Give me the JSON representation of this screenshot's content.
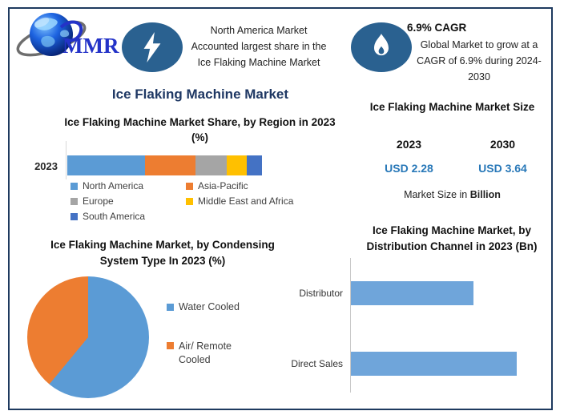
{
  "logo": {
    "text": "MMR"
  },
  "highlights": {
    "region": {
      "icon": "lightning-icon",
      "lines": [
        "North America Market",
        "Accounted largest share in the",
        "Ice Flaking Machine Market"
      ]
    },
    "cagr": {
      "icon": "flame-icon",
      "heading": "6.9% CAGR",
      "body_lines": [
        "Global Market to grow at a",
        "CAGR of 6.9% during 2024-",
        "2030"
      ]
    }
  },
  "main_title": "Ice Flaking Machine Market",
  "market_size": {
    "title": "Ice Flaking Machine Market Size",
    "columns": [
      {
        "year": "2023",
        "value": "USD 2.28"
      },
      {
        "year": "2030",
        "value": "USD 3.64"
      }
    ],
    "note_prefix": "Market Size in ",
    "note_bold": "Billion"
  },
  "colors": {
    "frame_border": "#1e3a5f",
    "title_navy": "#1f3864",
    "icon_circle": "#2a6190",
    "usd_blue": "#2878b8",
    "dist_bar": "#6fa5da",
    "axis_gray": "#d9d9d9"
  },
  "chart_data": [
    {
      "type": "bar",
      "variant": "stacked-horizontal",
      "title": "Ice Flaking Machine Market Share, by Region in 2023 (%)",
      "categories": [
        "2023"
      ],
      "series": [
        {
          "name": "North America",
          "values": [
            40
          ],
          "color": "#5b9bd5"
        },
        {
          "name": "Asia-Pacific",
          "values": [
            26
          ],
          "color": "#ed7d31"
        },
        {
          "name": "Europe",
          "values": [
            16
          ],
          "color": "#a5a5a5"
        },
        {
          "name": "Middle East and Africa",
          "values": [
            10
          ],
          "color": "#ffc000"
        },
        {
          "name": "South America",
          "values": [
            8
          ],
          "color": "#4472c4"
        }
      ],
      "xlim": [
        0,
        100
      ],
      "unit": "%",
      "grid": false,
      "legend_position": "bottom"
    },
    {
      "type": "pie",
      "title": "Ice Flaking Machine Market, by Condensing System Type In 2023 (%)",
      "labels": [
        "Water Cooled",
        "Air/ Remote Cooled"
      ],
      "values": [
        61,
        39
      ],
      "colors": [
        "#5b9bd5",
        "#ed7d31"
      ],
      "legend_position": "right"
    },
    {
      "type": "bar",
      "variant": "horizontal",
      "title": "Ice Flaking Machine Market, by Distribution Channel in 2023 (Bn)",
      "categories": [
        "Distributor",
        "Direct Sales"
      ],
      "values": [
        0.97,
        1.31
      ],
      "color": "#6fa5da",
      "unit": "Bn",
      "grid": false,
      "legend_position": "none"
    }
  ]
}
